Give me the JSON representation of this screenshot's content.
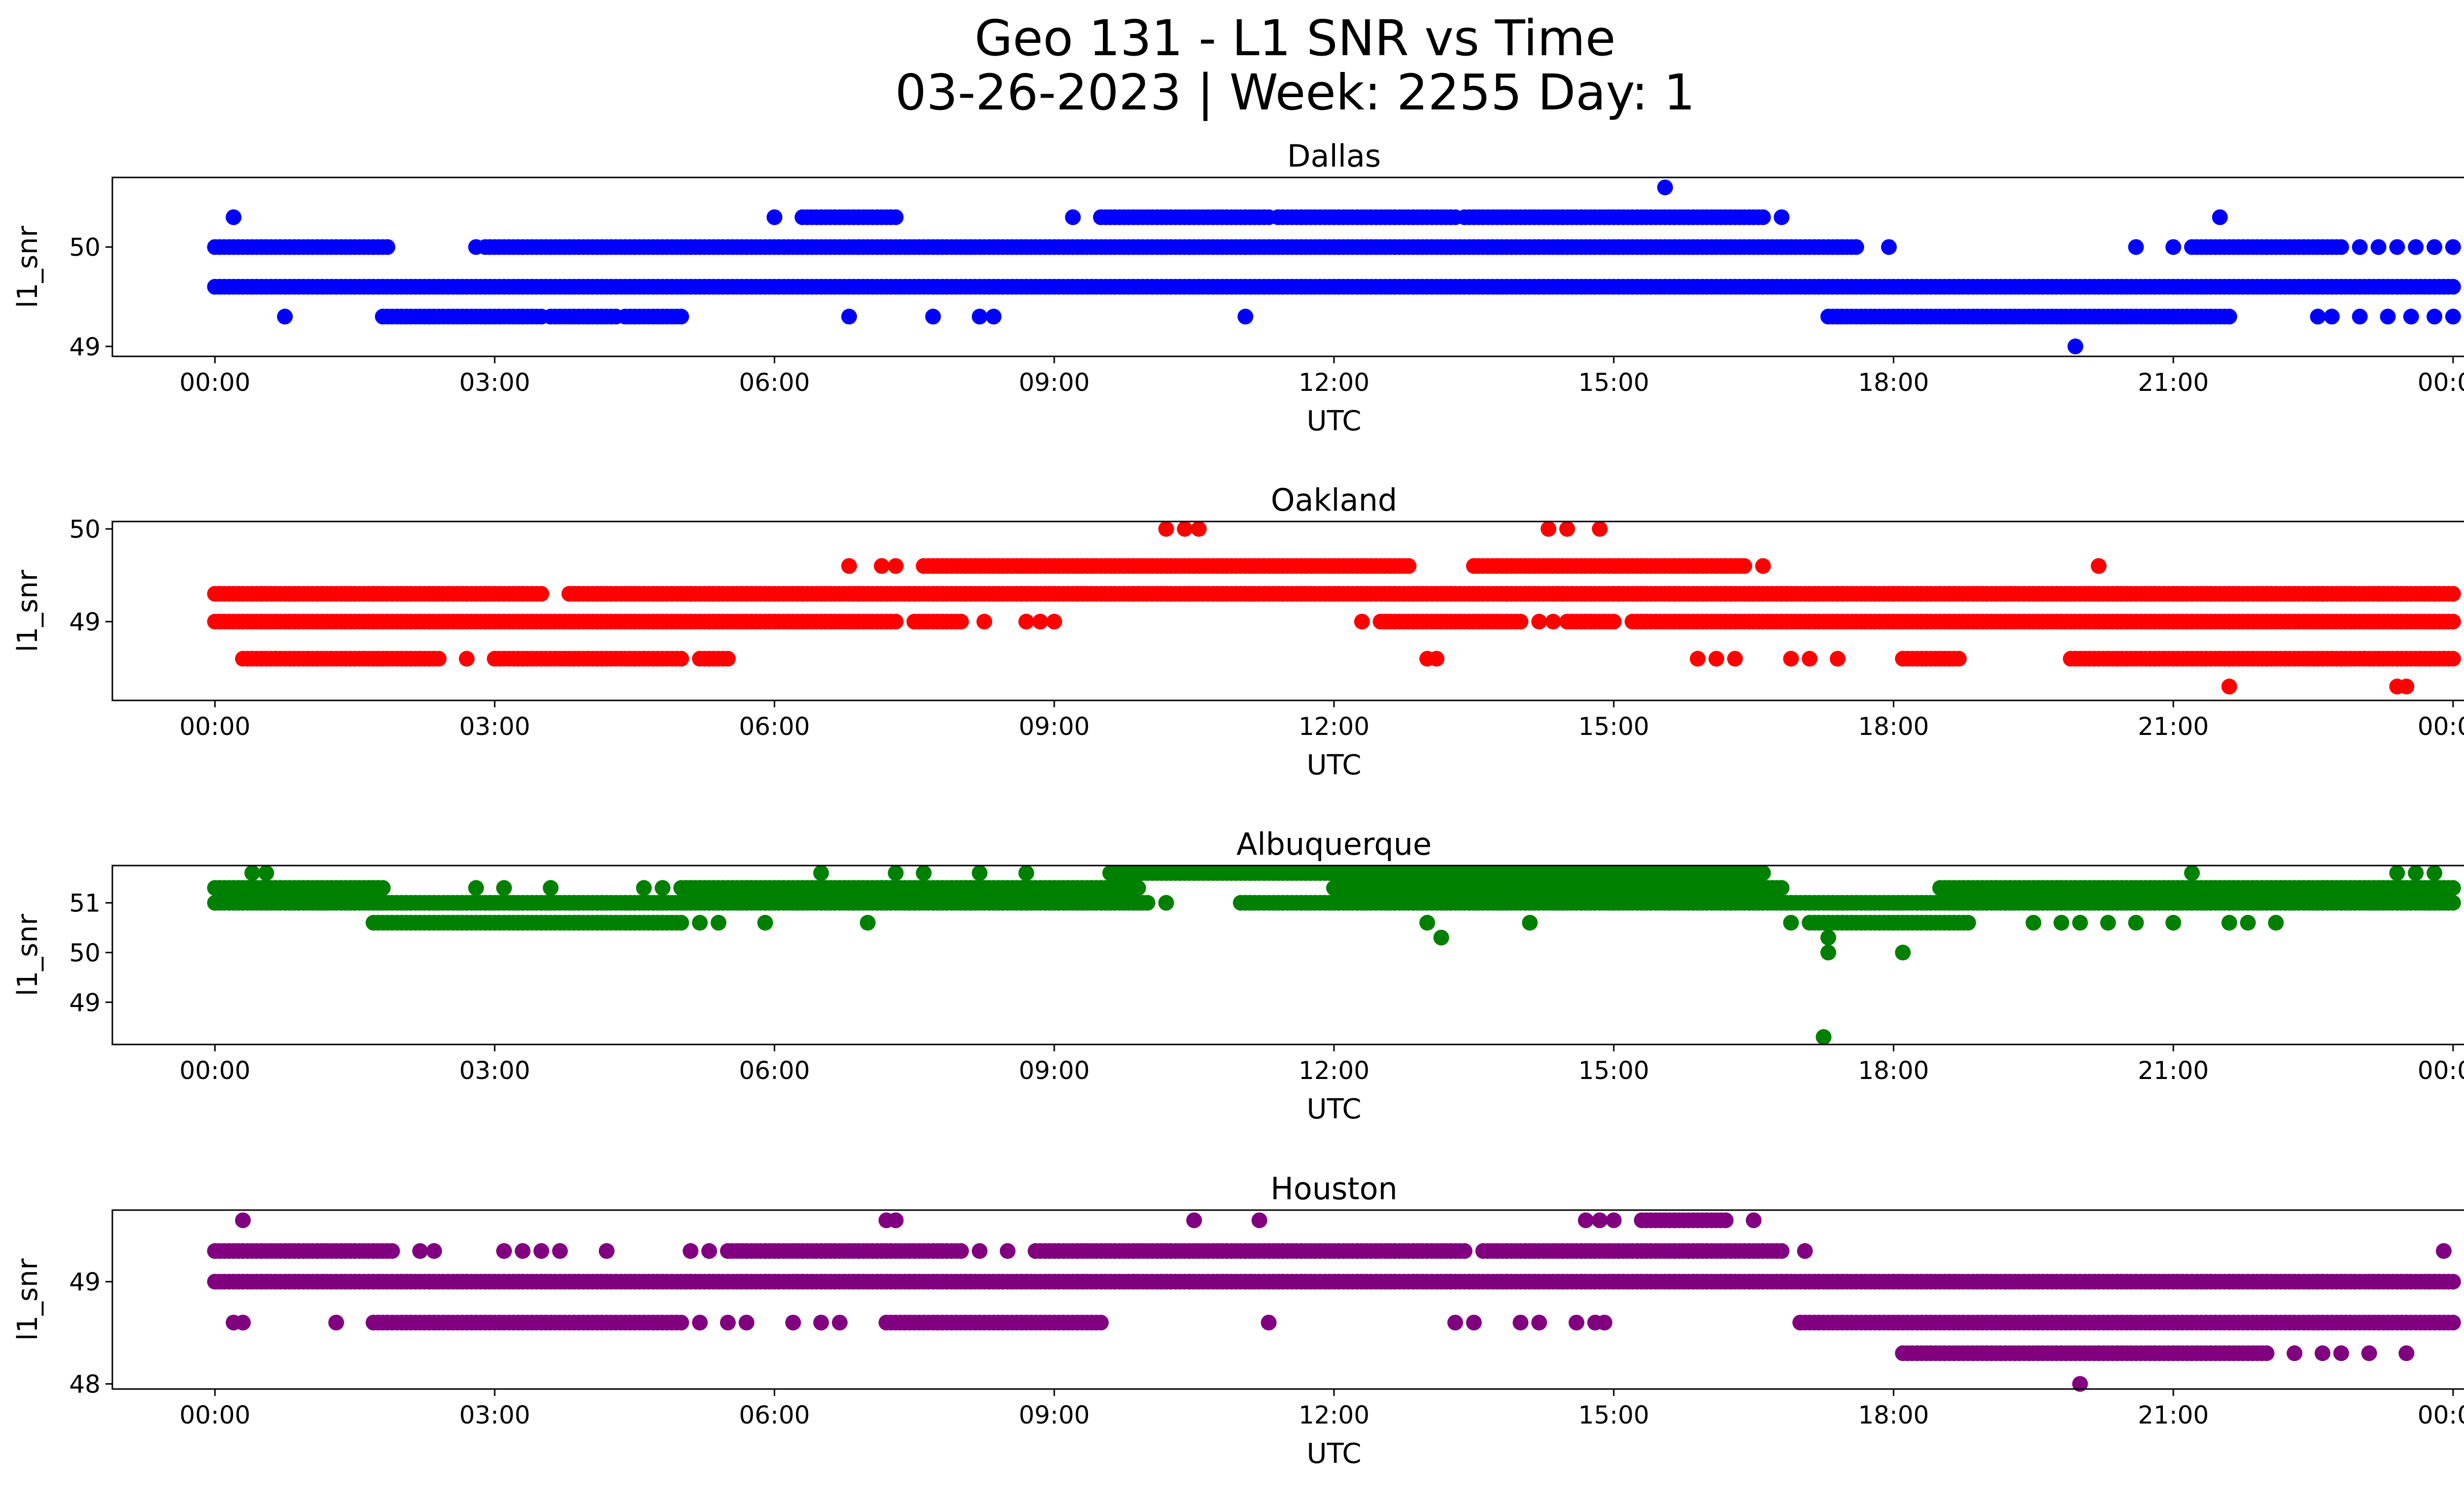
{
  "title_line1": "Geo 131 - L1 SNR vs Time",
  "title_line2": "03-26-2023 | Week: 2255 Day: 1",
  "chart_data": [
    {
      "type": "scatter",
      "title": "Dallas",
      "color": "#0000ff",
      "xlabel": "UTC",
      "ylabel": "l1_snr",
      "xlim": [
        -1.1,
        25.1
      ],
      "ylim": [
        48.9,
        50.7
      ],
      "yticks": [
        49,
        50
      ],
      "xtick_labels": [
        "00:00",
        "03:00",
        "06:00",
        "09:00",
        "12:00",
        "15:00",
        "18:00",
        "21:00",
        "00:00"
      ],
      "grid": false,
      "series": [
        {
          "y": 49.6,
          "ranges": [
            [
              0.0,
              24.0
            ]
          ],
          "points": []
        },
        {
          "y": 50.0,
          "ranges": [
            [
              0.0,
              1.8
            ],
            [
              2.9,
              17.6
            ],
            [
              21.2,
              22.8
            ]
          ],
          "points": [
            1.85,
            2.8,
            17.95,
            20.6,
            21.0,
            23.0,
            23.2,
            23.4,
            23.6,
            23.8,
            24.0
          ]
        },
        {
          "y": 49.3,
          "ranges": [
            [
              1.8,
              3.5
            ],
            [
              3.6,
              4.3
            ],
            [
              4.4,
              5.0
            ],
            [
              17.3,
              21.6
            ]
          ],
          "points": [
            0.75,
            4.0,
            6.8,
            7.7,
            8.2,
            8.35,
            11.05,
            22.55,
            22.7,
            23.0,
            23.3,
            23.55,
            23.8,
            24.0
          ]
        },
        {
          "y": 50.3,
          "ranges": [
            [
              6.3,
              7.3
            ],
            [
              9.5,
              11.3
            ],
            [
              11.4,
              13.3
            ],
            [
              13.4,
              16.6
            ]
          ],
          "points": [
            0.2,
            6.0,
            9.2,
            16.8,
            21.5
          ]
        },
        {
          "y": 50.6,
          "ranges": [],
          "points": [
            15.55
          ]
        },
        {
          "y": 49.0,
          "ranges": [],
          "points": [
            19.95
          ]
        }
      ]
    },
    {
      "type": "scatter",
      "title": "Oakland",
      "color": "#ff0000",
      "xlabel": "UTC",
      "ylabel": "l1_snr",
      "xlim": [
        -1.1,
        25.1
      ],
      "ylim": [
        48.15,
        50.08
      ],
      "yticks": [
        49,
        50
      ],
      "xtick_labels": [
        "00:00",
        "03:00",
        "06:00",
        "09:00",
        "12:00",
        "15:00",
        "18:00",
        "21:00",
        "00:00"
      ],
      "grid": false,
      "series": [
        {
          "y": 49.0,
          "ranges": [
            [
              0.0,
              7.3
            ],
            [
              7.5,
              8.0
            ],
            [
              12.5,
              14.0
            ],
            [
              14.5,
              15.0
            ],
            [
              15.2,
              24.0
            ]
          ],
          "points": [
            8.25,
            8.7,
            8.85,
            9.0,
            12.3,
            14.2,
            14.35,
            14.7
          ]
        },
        {
          "y": 49.3,
          "ranges": [
            [
              0.0,
              3.5
            ],
            [
              3.8,
              24.0
            ]
          ],
          "points": []
        },
        {
          "y": 48.6,
          "ranges": [
            [
              0.3,
              2.4
            ],
            [
              3.0,
              5.0
            ],
            [
              5.2,
              5.5
            ],
            [
              18.1,
              18.7
            ],
            [
              19.9,
              24.0
            ]
          ],
          "points": [
            2.7,
            15.9,
            16.1,
            16.3,
            16.9,
            17.1,
            17.4,
            13.0,
            13.1
          ]
        },
        {
          "y": 49.6,
          "ranges": [
            [
              7.6,
              12.8
            ],
            [
              13.5,
              16.4
            ]
          ],
          "points": [
            6.8,
            7.15,
            7.3,
            16.6,
            20.2
          ]
        },
        {
          "y": 50.0,
          "ranges": [],
          "points": [
            10.2,
            10.4,
            10.55,
            14.3,
            14.5,
            14.85
          ]
        },
        {
          "y": 48.3,
          "ranges": [],
          "points": [
            21.6,
            23.4,
            23.5
          ]
        }
      ]
    },
    {
      "type": "scatter",
      "title": "Albuquerque",
      "color": "#008000",
      "xlabel": "UTC",
      "ylabel": "l1_snr",
      "xlim": [
        -1.1,
        25.1
      ],
      "ylim": [
        48.15,
        51.75
      ],
      "yticks": [
        49,
        50,
        51
      ],
      "xtick_labels": [
        "00:00",
        "03:00",
        "06:00",
        "09:00",
        "12:00",
        "15:00",
        "18:00",
        "21:00",
        "00:00"
      ],
      "grid": false,
      "series": [
        {
          "y": 51.0,
          "ranges": [
            [
              0.0,
              10.0
            ],
            [
              11.0,
              16.5
            ],
            [
              16.5,
              24.0
            ]
          ],
          "points": [
            10.2
          ]
        },
        {
          "y": 51.3,
          "ranges": [
            [
              0.0,
              1.8
            ],
            [
              5.0,
              9.9
            ],
            [
              12.0,
              16.8
            ],
            [
              18.5,
              24.0
            ]
          ],
          "points": [
            2.8,
            3.1,
            3.6,
            4.6,
            4.8
          ]
        },
        {
          "y": 50.6,
          "ranges": [
            [
              1.7,
              5.0
            ],
            [
              17.1,
              18.8
            ]
          ],
          "points": [
            5.2,
            5.4,
            5.9,
            7.0,
            13.0,
            14.1,
            16.9,
            19.5,
            19.8,
            20.0,
            20.3,
            20.6,
            21.0,
            21.6,
            21.8,
            22.1
          ]
        },
        {
          "y": 51.6,
          "ranges": [
            [
              9.6,
              16.6
            ]
          ],
          "points": [
            0.4,
            0.55,
            6.5,
            7.3,
            7.6,
            8.2,
            8.7,
            14.6,
            23.4,
            23.6,
            23.8,
            21.2
          ]
        },
        {
          "y": 50.3,
          "ranges": [],
          "points": [
            13.15,
            17.3
          ]
        },
        {
          "y": 50.0,
          "ranges": [],
          "points": [
            17.3,
            18.1
          ]
        },
        {
          "y": 48.3,
          "ranges": [],
          "points": [
            17.25
          ]
        }
      ]
    },
    {
      "type": "scatter",
      "title": "Houston",
      "color": "#800080",
      "xlabel": "UTC",
      "ylabel": "l1_snr",
      "xlim": [
        -1.1,
        25.1
      ],
      "ylim": [
        47.95,
        49.7
      ],
      "yticks": [
        48,
        49
      ],
      "xtick_labels": [
        "00:00",
        "03:00",
        "06:00",
        "09:00",
        "12:00",
        "15:00",
        "18:00",
        "21:00",
        "00:00"
      ],
      "grid": false,
      "series": [
        {
          "y": 49.0,
          "ranges": [
            [
              0.0,
              24.0
            ]
          ],
          "points": []
        },
        {
          "y": 49.3,
          "ranges": [
            [
              0.0,
              1.9
            ],
            [
              5.5,
              8.0
            ],
            [
              8.8,
              13.4
            ],
            [
              13.6,
              16.8
            ]
          ],
          "points": [
            2.2,
            2.35,
            3.1,
            3.3,
            3.5,
            3.7,
            4.2,
            5.1,
            5.3,
            8.2,
            8.5,
            17.05,
            23.9
          ]
        },
        {
          "y": 48.6,
          "ranges": [
            [
              1.7,
              5.0
            ],
            [
              7.2,
              9.5
            ],
            [
              17.0,
              24.0
            ]
          ],
          "points": [
            0.2,
            0.3,
            1.3,
            5.2,
            5.5,
            5.7,
            6.2,
            6.5,
            6.7,
            11.3,
            13.3,
            13.5,
            14.0,
            14.2,
            14.6,
            14.8,
            14.9
          ]
        },
        {
          "y": 49.6,
          "ranges": [
            [
              15.3,
              16.2
            ]
          ],
          "points": [
            0.3,
            7.2,
            7.3,
            10.5,
            11.2,
            14.7,
            14.85,
            15.0,
            16.5
          ]
        },
        {
          "y": 48.3,
          "ranges": [
            [
              18.1,
              22.0
            ]
          ],
          "points": [
            22.3,
            22.6,
            22.8,
            23.1,
            23.5
          ]
        },
        {
          "y": 48.0,
          "ranges": [],
          "points": [
            20.0
          ]
        }
      ]
    }
  ]
}
